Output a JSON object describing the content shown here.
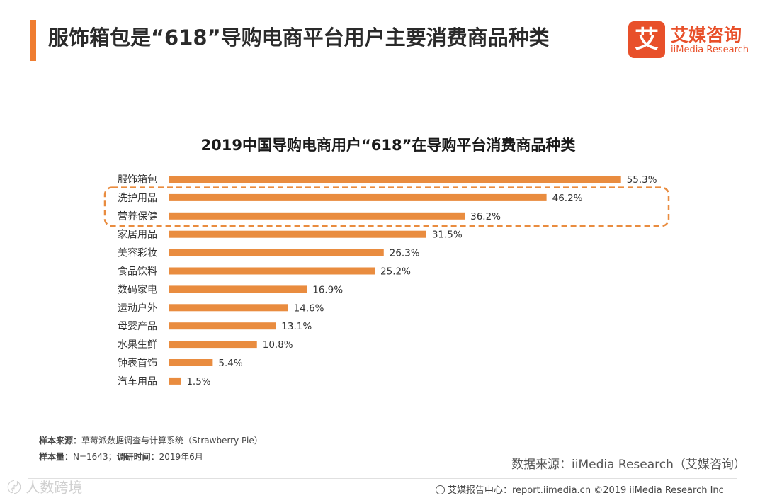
{
  "header": {
    "title": "服饰箱包是“618”导购电商平台用户主要消费商品种类",
    "accent_color": "#ef7d31"
  },
  "logo": {
    "badge_char": "艾",
    "name_cn": "艾媒咨询",
    "name_en": "iiMedia Research",
    "color": "#e8502a"
  },
  "chart_data": {
    "type": "bar",
    "orientation": "horizontal",
    "title": "2019中国导购电商用户“618”在导购平台消费商品种类",
    "categories": [
      "服饰箱包",
      "洗护用品",
      "营养保健",
      "家居用品",
      "美容彩妆",
      "食品饮料",
      "数码家电",
      "运动户外",
      "母婴产品",
      "水果生鲜",
      "钟表首饰",
      "汽车用品"
    ],
    "values": [
      55.3,
      46.2,
      36.2,
      31.5,
      26.3,
      25.2,
      16.9,
      14.6,
      13.1,
      10.8,
      5.4,
      1.5
    ],
    "value_labels": [
      "55.3%",
      "46.2%",
      "36.2%",
      "31.5%",
      "26.3%",
      "25.2%",
      "16.9%",
      "14.6%",
      "13.1%",
      "10.8%",
      "5.4%",
      "1.5%"
    ],
    "xlim": [
      0,
      60
    ],
    "grid": false,
    "legend": "none",
    "bar_color": "#e98c3f",
    "highlight": {
      "categories": [
        "洗护用品",
        "营养保健"
      ],
      "style": "dashed-box",
      "color": "#e98c3f"
    }
  },
  "notes": {
    "source_label": "样本来源：",
    "source_value": "草莓派数据调查与计算系统（Strawberry Pie）",
    "sample_label": "样本量：",
    "sample_value": "N=1643；",
    "time_label": "调研时间：",
    "time_value": "2019年6月"
  },
  "data_source": "数据来源：iiMedia Research（艾媒咨询）",
  "footer": {
    "text": "艾媒报告中心：report.iimedia.cn  ©2019  iiMedia Research  Inc"
  },
  "watermark": "〄 人数跨境"
}
